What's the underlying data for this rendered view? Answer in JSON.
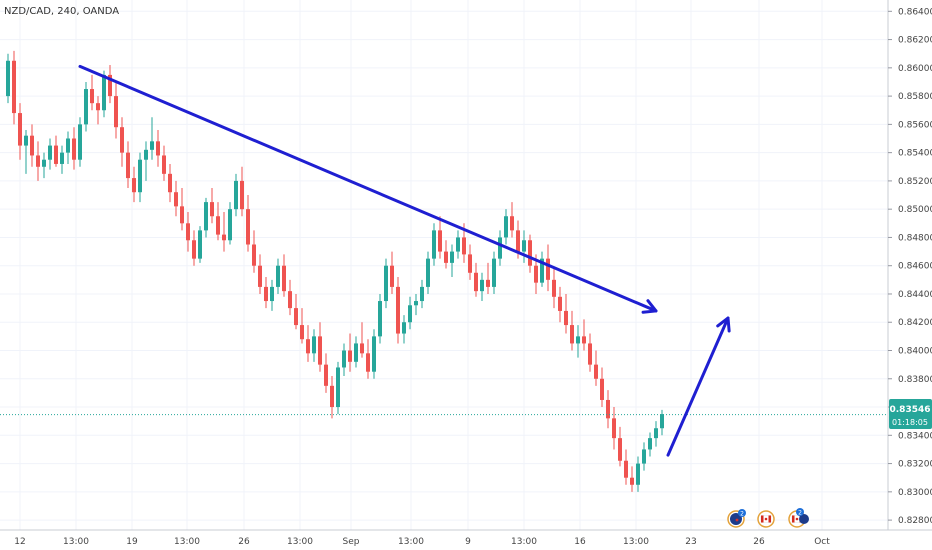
{
  "header": {
    "title": "NZD/CAD, 240, OANDA"
  },
  "colors": {
    "up": "#26a69a",
    "down": "#ef5350",
    "trendline": "#1f1fd1",
    "price_line": "#26a69a",
    "price_badge_bg": "#26a69a",
    "price_badge_text": "#ffffff"
  },
  "price_badge": {
    "price": "0.83546",
    "countdown": "01:18:05"
  },
  "event_icons": [
    "nz-flag-icon",
    "canada-flag-icon",
    "canada-flag-icon"
  ],
  "event_badges": [
    "2",
    "2"
  ],
  "chart_data": {
    "type": "candlestick",
    "title": "NZD/CAD, 240, OANDA",
    "y_ticks": [
      "0.86400",
      "0.86200",
      "0.86000",
      "0.85800",
      "0.85600",
      "0.85400",
      "0.85200",
      "0.85000",
      "0.84800",
      "0.84600",
      "0.84400",
      "0.84200",
      "0.84000",
      "0.83800",
      "0.83600",
      "0.83400",
      "0.83200",
      "0.83000",
      "0.82800"
    ],
    "x_ticks": [
      "12",
      "13:00",
      "19",
      "13:00",
      "26",
      "13:00",
      "Sep",
      "13:00",
      "9",
      "13:00",
      "16",
      "13:00",
      "23",
      "26",
      "Oct"
    ],
    "ylim": [
      0.8273,
      0.8648
    ],
    "current_price": 0.83546,
    "grid": true,
    "candles": [
      [
        0.858,
        0.861,
        0.8575,
        0.8605
      ],
      [
        0.8605,
        0.8612,
        0.856,
        0.8568
      ],
      [
        0.8568,
        0.8575,
        0.8535,
        0.8545
      ],
      [
        0.8545,
        0.8556,
        0.8525,
        0.8552
      ],
      [
        0.8552,
        0.856,
        0.853,
        0.8538
      ],
      [
        0.8538,
        0.8548,
        0.852,
        0.853
      ],
      [
        0.853,
        0.854,
        0.8522,
        0.8535
      ],
      [
        0.8535,
        0.855,
        0.8528,
        0.8545
      ],
      [
        0.8545,
        0.8552,
        0.853,
        0.8532
      ],
      [
        0.8532,
        0.8545,
        0.8525,
        0.854
      ],
      [
        0.854,
        0.8555,
        0.8532,
        0.855
      ],
      [
        0.855,
        0.8558,
        0.8528,
        0.8535
      ],
      [
        0.8535,
        0.8565,
        0.853,
        0.856
      ],
      [
        0.856,
        0.859,
        0.8555,
        0.8585
      ],
      [
        0.8585,
        0.8595,
        0.857,
        0.8575
      ],
      [
        0.8575,
        0.858,
        0.856,
        0.857
      ],
      [
        0.857,
        0.8598,
        0.8565,
        0.8595
      ],
      [
        0.8595,
        0.8602,
        0.8575,
        0.858
      ],
      [
        0.858,
        0.859,
        0.855,
        0.8558
      ],
      [
        0.8558,
        0.8565,
        0.853,
        0.854
      ],
      [
        0.854,
        0.8548,
        0.8515,
        0.8522
      ],
      [
        0.8522,
        0.853,
        0.8505,
        0.8512
      ],
      [
        0.8512,
        0.854,
        0.8505,
        0.8535
      ],
      [
        0.8535,
        0.8548,
        0.852,
        0.8542
      ],
      [
        0.8542,
        0.8565,
        0.8535,
        0.8548
      ],
      [
        0.8548,
        0.8556,
        0.853,
        0.8538
      ],
      [
        0.8538,
        0.8545,
        0.852,
        0.8525
      ],
      [
        0.8525,
        0.8532,
        0.8505,
        0.8512
      ],
      [
        0.8512,
        0.852,
        0.8495,
        0.8502
      ],
      [
        0.8502,
        0.8515,
        0.8485,
        0.849
      ],
      [
        0.849,
        0.8498,
        0.847,
        0.8478
      ],
      [
        0.8478,
        0.8485,
        0.846,
        0.8465
      ],
      [
        0.8465,
        0.8488,
        0.8462,
        0.8485
      ],
      [
        0.8485,
        0.8508,
        0.848,
        0.8505
      ],
      [
        0.8505,
        0.8515,
        0.849,
        0.8495
      ],
      [
        0.8495,
        0.8505,
        0.8478,
        0.8482
      ],
      [
        0.8482,
        0.8498,
        0.847,
        0.8478
      ],
      [
        0.8478,
        0.8505,
        0.8475,
        0.85
      ],
      [
        0.85,
        0.8525,
        0.8495,
        0.852
      ],
      [
        0.852,
        0.853,
        0.8495,
        0.85
      ],
      [
        0.85,
        0.851,
        0.847,
        0.8475
      ],
      [
        0.8475,
        0.8485,
        0.8455,
        0.846
      ],
      [
        0.846,
        0.8468,
        0.844,
        0.8445
      ],
      [
        0.8445,
        0.8452,
        0.843,
        0.8435
      ],
      [
        0.8435,
        0.845,
        0.8428,
        0.8445
      ],
      [
        0.8445,
        0.8465,
        0.844,
        0.846
      ],
      [
        0.846,
        0.8468,
        0.8438,
        0.8442
      ],
      [
        0.8442,
        0.845,
        0.8425,
        0.843
      ],
      [
        0.843,
        0.844,
        0.8415,
        0.8418
      ],
      [
        0.8418,
        0.843,
        0.8405,
        0.8408
      ],
      [
        0.8408,
        0.8418,
        0.8392,
        0.8398
      ],
      [
        0.8398,
        0.8415,
        0.8392,
        0.841
      ],
      [
        0.841,
        0.842,
        0.8385,
        0.839
      ],
      [
        0.839,
        0.8398,
        0.837,
        0.8375
      ],
      [
        0.8375,
        0.8382,
        0.8352,
        0.836
      ],
      [
        0.836,
        0.8392,
        0.8355,
        0.8388
      ],
      [
        0.8388,
        0.8405,
        0.8382,
        0.84
      ],
      [
        0.84,
        0.8412,
        0.8385,
        0.8392
      ],
      [
        0.8392,
        0.841,
        0.8388,
        0.8405
      ],
      [
        0.8405,
        0.842,
        0.8395,
        0.8398
      ],
      [
        0.8398,
        0.8408,
        0.838,
        0.8385
      ],
      [
        0.8385,
        0.8415,
        0.838,
        0.841
      ],
      [
        0.841,
        0.844,
        0.8405,
        0.8435
      ],
      [
        0.8435,
        0.8465,
        0.843,
        0.846
      ],
      [
        0.846,
        0.847,
        0.844,
        0.8445
      ],
      [
        0.8445,
        0.8452,
        0.8405,
        0.8412
      ],
      [
        0.8412,
        0.8425,
        0.8405,
        0.842
      ],
      [
        0.842,
        0.8438,
        0.8415,
        0.8432
      ],
      [
        0.8432,
        0.844,
        0.8425,
        0.8435
      ],
      [
        0.8435,
        0.845,
        0.843,
        0.8445
      ],
      [
        0.8445,
        0.847,
        0.844,
        0.8465
      ],
      [
        0.8465,
        0.849,
        0.846,
        0.8485
      ],
      [
        0.8485,
        0.8495,
        0.8465,
        0.847
      ],
      [
        0.847,
        0.8478,
        0.8458,
        0.8462
      ],
      [
        0.8462,
        0.8475,
        0.8452,
        0.847
      ],
      [
        0.847,
        0.8485,
        0.8465,
        0.848
      ],
      [
        0.848,
        0.849,
        0.8462,
        0.8468
      ],
      [
        0.8468,
        0.8475,
        0.845,
        0.8455
      ],
      [
        0.8455,
        0.8462,
        0.8438,
        0.8442
      ],
      [
        0.8442,
        0.8455,
        0.8435,
        0.845
      ],
      [
        0.845,
        0.8462,
        0.844,
        0.8445
      ],
      [
        0.8445,
        0.847,
        0.844,
        0.8465
      ],
      [
        0.8465,
        0.8485,
        0.846,
        0.848
      ],
      [
        0.848,
        0.85,
        0.8475,
        0.8495
      ],
      [
        0.8495,
        0.8505,
        0.848,
        0.8485
      ],
      [
        0.8485,
        0.8492,
        0.8465,
        0.847
      ],
      [
        0.847,
        0.8485,
        0.8462,
        0.8478
      ],
      [
        0.8478,
        0.8482,
        0.8455,
        0.846
      ],
      [
        0.846,
        0.8468,
        0.844,
        0.8448
      ],
      [
        0.8448,
        0.847,
        0.8445,
        0.8465
      ],
      [
        0.8465,
        0.8475,
        0.8442,
        0.845
      ],
      [
        0.845,
        0.8458,
        0.843,
        0.8438
      ],
      [
        0.8438,
        0.8445,
        0.842,
        0.8428
      ],
      [
        0.8428,
        0.844,
        0.8412,
        0.8418
      ],
      [
        0.8418,
        0.8428,
        0.84,
        0.8405
      ],
      [
        0.8405,
        0.8418,
        0.8395,
        0.841
      ],
      [
        0.841,
        0.8422,
        0.84,
        0.8405
      ],
      [
        0.8405,
        0.8412,
        0.8385,
        0.839
      ],
      [
        0.839,
        0.84,
        0.8375,
        0.838
      ],
      [
        0.838,
        0.8388,
        0.836,
        0.8365
      ],
      [
        0.8365,
        0.8372,
        0.8345,
        0.8352
      ],
      [
        0.8352,
        0.836,
        0.833,
        0.8338
      ],
      [
        0.8338,
        0.8346,
        0.8318,
        0.8322
      ],
      [
        0.8322,
        0.833,
        0.8305,
        0.831
      ],
      [
        0.831,
        0.8318,
        0.83,
        0.8305
      ],
      [
        0.8305,
        0.8325,
        0.83,
        0.832
      ],
      [
        0.832,
        0.8335,
        0.8315,
        0.833
      ],
      [
        0.833,
        0.8342,
        0.8325,
        0.8338
      ],
      [
        0.8338,
        0.835,
        0.8332,
        0.8345
      ],
      [
        0.8345,
        0.8358,
        0.834,
        0.8355
      ]
    ],
    "trendline_upper": {
      "x1": 12,
      "y1": 0.8601,
      "x2": 108,
      "y2": 0.8428,
      "arrow": true
    },
    "projection_arrow": {
      "x1": 110,
      "y1": 0.8326,
      "x2": 120,
      "y2": 0.8423
    }
  }
}
